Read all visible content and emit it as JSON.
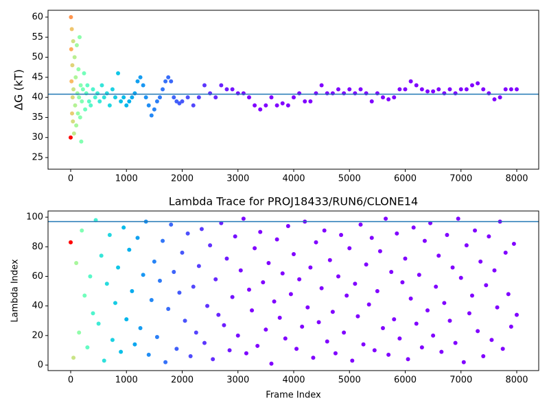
{
  "chart_data": [
    {
      "type": "scatter",
      "ylabel": "ΔG (kT)",
      "colormap": "rainbow_r",
      "hline": 40.8,
      "hline_color": "#1f77b4",
      "xlim": [
        -406,
        8394
      ],
      "ylim": [
        22.1,
        61.7
      ],
      "xticks": [
        0,
        1000,
        2000,
        3000,
        4000,
        5000,
        6000,
        7000,
        8000
      ],
      "yticks": [
        25,
        30,
        35,
        40,
        45,
        50,
        55,
        60
      ],
      "x": [
        0,
        5,
        10,
        15,
        20,
        25,
        30,
        35,
        40,
        45,
        50,
        60,
        70,
        80,
        90,
        100,
        110,
        120,
        130,
        140,
        150,
        160,
        170,
        180,
        190,
        200,
        220,
        240,
        260,
        280,
        300,
        330,
        360,
        400,
        440,
        480,
        520,
        560,
        600,
        650,
        700,
        750,
        800,
        850,
        900,
        950,
        1000,
        1050,
        1100,
        1150,
        1200,
        1250,
        1300,
        1350,
        1400,
        1450,
        1500,
        1550,
        1600,
        1650,
        1700,
        1750,
        1800,
        1850,
        1900,
        1950,
        2000,
        2100,
        2200,
        2300,
        2400,
        2500,
        2600,
        2700,
        2800,
        2900,
        3000,
        3100,
        3200,
        3300,
        3400,
        3500,
        3600,
        3700,
        3800,
        3900,
        4000,
        4100,
        4200,
        4300,
        4400,
        4500,
        4600,
        4700,
        4800,
        4900,
        5000,
        5100,
        5200,
        5300,
        5400,
        5500,
        5600,
        5700,
        5800,
        5900,
        6000,
        6100,
        6200,
        6300,
        6400,
        6500,
        6600,
        6700,
        6800,
        6900,
        7000,
        7100,
        7200,
        7300,
        7400,
        7500,
        7600,
        7700,
        7800,
        7900,
        8000
      ],
      "values": [
        30,
        60,
        52,
        44,
        57,
        36,
        48,
        40,
        34,
        54,
        42,
        31,
        50,
        38,
        45,
        33,
        53,
        41,
        36,
        47,
        40,
        55,
        35,
        43,
        29,
        39,
        42,
        46,
        37,
        41,
        43,
        39,
        38,
        42,
        40,
        41,
        39,
        43,
        40,
        41,
        38,
        42,
        40,
        46,
        39,
        40,
        38,
        39,
        40,
        41,
        44,
        45,
        43,
        40,
        38,
        35.5,
        37,
        39,
        40,
        42,
        44,
        45,
        44,
        40,
        39,
        38.5,
        39,
        40,
        38,
        40,
        43,
        41,
        40,
        43,
        42,
        42,
        41,
        41,
        40,
        38,
        37,
        38,
        40,
        38,
        38.5,
        38,
        40,
        41,
        39,
        39,
        41,
        43,
        41,
        41,
        42,
        41,
        42,
        41,
        42,
        41,
        39,
        41,
        40,
        39.5,
        40,
        42,
        42,
        44,
        43,
        42,
        41.5,
        41.5,
        42,
        41,
        42,
        41,
        42,
        42,
        43,
        43.5,
        42,
        41,
        39.5,
        40,
        42,
        42,
        42
      ]
    },
    {
      "type": "scatter",
      "title": "Lambda Trace for PROJ18433/RUN6/CLONE14",
      "xlabel": "Frame Index",
      "ylabel": "Lambda Index",
      "colormap": "rainbow_r",
      "hline": 97,
      "hline_color": "#1f77b4",
      "xlim": [
        -406,
        8394
      ],
      "ylim": [
        -3.7,
        104.2
      ],
      "xticks": [
        0,
        1000,
        2000,
        3000,
        4000,
        5000,
        6000,
        7000,
        8000
      ],
      "yticks": [
        0,
        20,
        40,
        60,
        80,
        100
      ],
      "x": [
        0,
        50,
        100,
        150,
        200,
        250,
        300,
        350,
        400,
        450,
        500,
        550,
        600,
        650,
        700,
        750,
        800,
        850,
        900,
        950,
        1000,
        1050,
        1100,
        1150,
        1200,
        1250,
        1300,
        1350,
        1400,
        1450,
        1500,
        1550,
        1600,
        1650,
        1700,
        1750,
        1800,
        1850,
        1900,
        1950,
        2000,
        2050,
        2100,
        2150,
        2200,
        2250,
        2300,
        2350,
        2400,
        2450,
        2500,
        2550,
        2600,
        2650,
        2700,
        2750,
        2800,
        2850,
        2900,
        2950,
        3000,
        3050,
        3100,
        3150,
        3200,
        3250,
        3300,
        3350,
        3400,
        3450,
        3500,
        3550,
        3600,
        3650,
        3700,
        3750,
        3800,
        3850,
        3900,
        3950,
        4000,
        4050,
        4100,
        4150,
        4200,
        4250,
        4300,
        4350,
        4400,
        4450,
        4500,
        4550,
        4600,
        4650,
        4700,
        4750,
        4800,
        4850,
        4900,
        4950,
        5000,
        5050,
        5100,
        5150,
        5200,
        5250,
        5300,
        5350,
        5400,
        5450,
        5500,
        5550,
        5600,
        5650,
        5700,
        5750,
        5800,
        5850,
        5900,
        5950,
        6000,
        6050,
        6100,
        6150,
        6200,
        6250,
        6300,
        6350,
        6400,
        6450,
        6500,
        6550,
        6600,
        6650,
        6700,
        6750,
        6800,
        6850,
        6900,
        6950,
        7000,
        7050,
        7100,
        7150,
        7200,
        7250,
        7300,
        7350,
        7400,
        7450,
        7500,
        7550,
        7600,
        7650,
        7700,
        7750,
        7800,
        7850,
        7900,
        7950,
        8000
      ],
      "values": [
        83,
        5,
        69,
        22,
        91,
        47,
        12,
        60,
        35,
        98,
        28,
        74,
        3,
        55,
        88,
        17,
        42,
        66,
        9,
        93,
        31,
        78,
        50,
        14,
        86,
        25,
        61,
        97,
        7,
        44,
        70,
        19,
        57,
        84,
        2,
        38,
        95,
        63,
        11,
        49,
        76,
        30,
        89,
        6,
        53,
        22,
        67,
        92,
        15,
        40,
        81,
        4,
        58,
        34,
        96,
        27,
        72,
        10,
        46,
        87,
        20,
        64,
        99,
        8,
        51,
        37,
        79,
        13,
        90,
        56,
        24,
        69,
        1,
        43,
        85,
        32,
        62,
        18,
        94,
        48,
        75,
        11,
        58,
        26,
        97,
        39,
        66,
        5,
        83,
        29,
        52,
        91,
        16,
        71,
        36,
        8,
        60,
        88,
        22,
        47,
        79,
        3,
        55,
        33,
        95,
        14,
        68,
        41,
        86,
        10,
        50,
        77,
        25,
        99,
        7,
        63,
        31,
        89,
        18,
        56,
        72,
        4,
        45,
        93,
        28,
        61,
        12,
        84,
        37,
        96,
        20,
        53,
        74,
        9,
        42,
        88,
        30,
        66,
        15,
        99,
        59,
        2,
        81,
        35,
        47,
        91,
        23,
        70,
        6,
        54,
        87,
        17,
        64,
        39,
        97,
        11,
        76,
        48,
        26,
        82,
        34
      ]
    }
  ]
}
